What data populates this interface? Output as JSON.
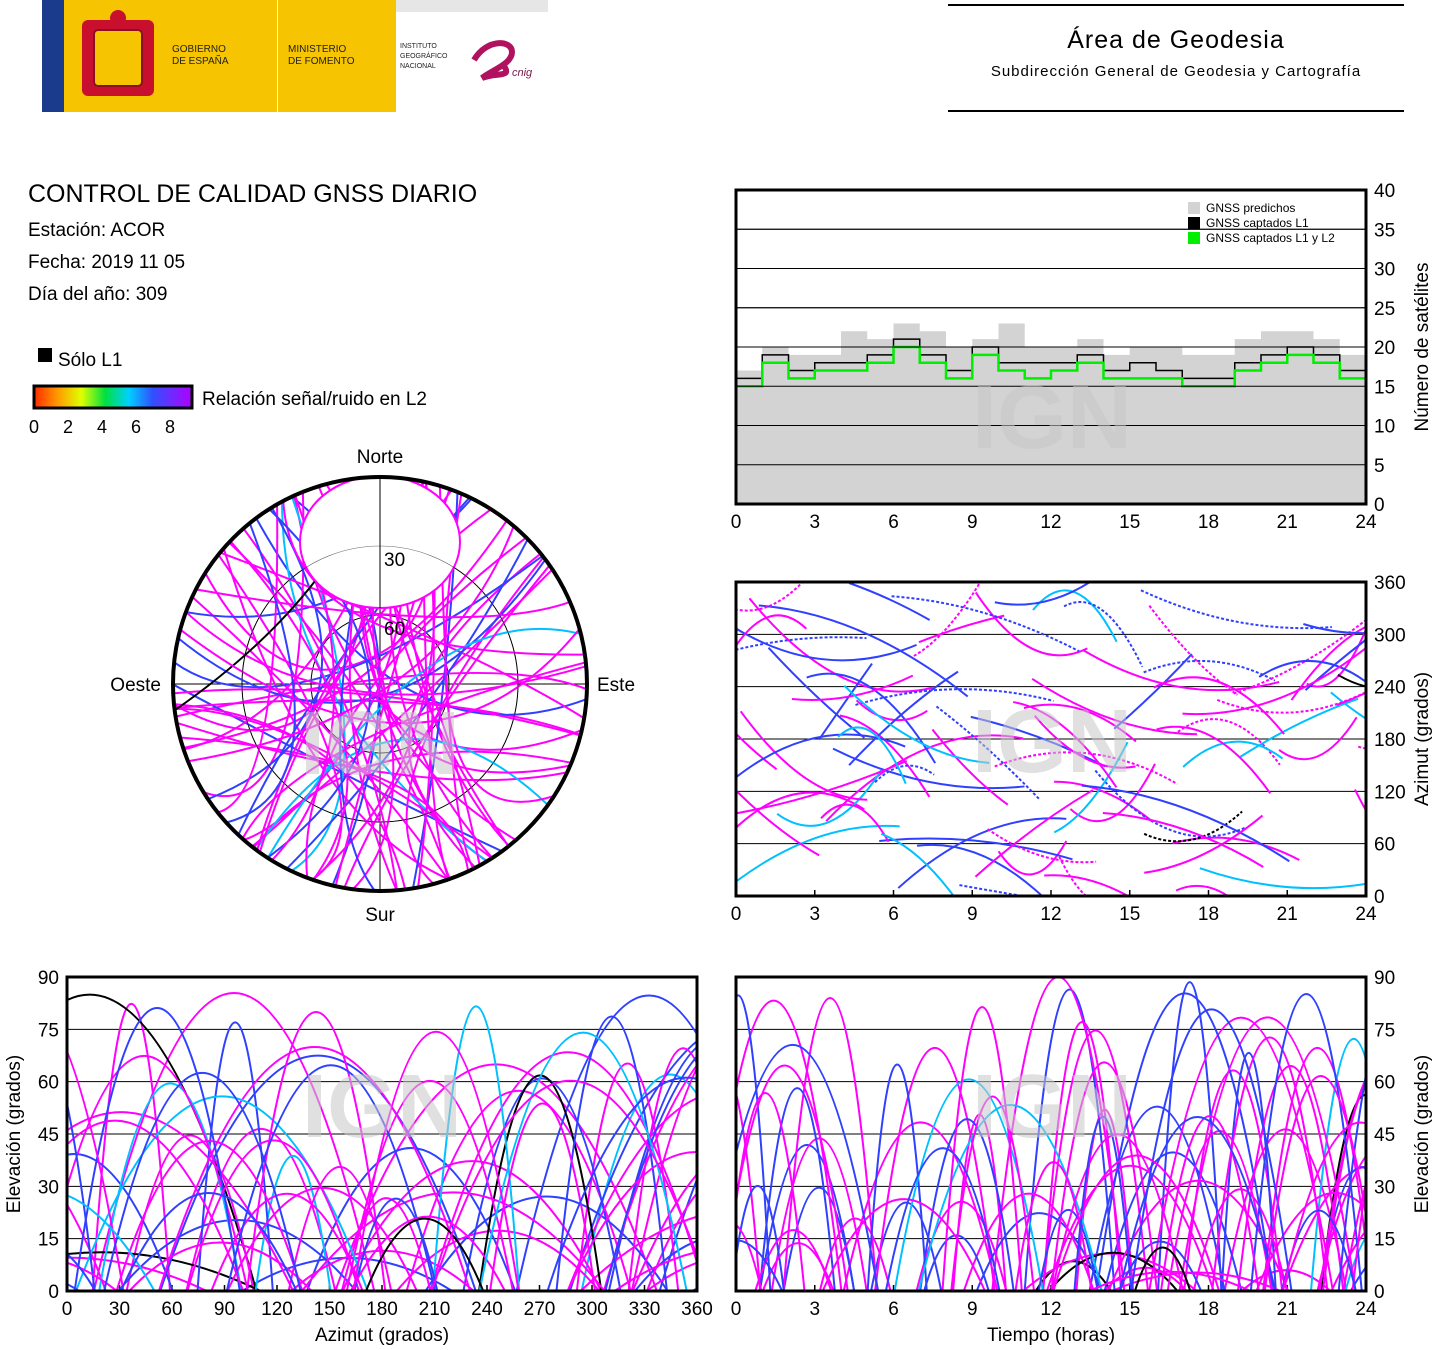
{
  "header": {
    "logos": {
      "gobierno": [
        "GOBIERNO",
        "DE ESPAÑA"
      ],
      "ministerio": [
        "MINISTERIO",
        "DE FOMENTO"
      ],
      "instituto": [
        "INSTITUTO",
        "GEOGRÁFICO",
        "NACIONAL"
      ],
      "cnig": "cnig"
    },
    "area_title": "Área de Geodesia",
    "area_subtitle": "Subdirección General de Geodesia y Cartografía"
  },
  "report": {
    "title": "CONTROL DE CALIDAD GNSS DIARIO",
    "station": "Estación: ACOR",
    "date": "Fecha: 2019 11 05",
    "doy": "Día del año: 309"
  },
  "legend": {
    "l1_only": "Sólo L1",
    "snr_label": "Relación señal/ruido en L2",
    "snr_ticks": [
      "0",
      "2",
      "4",
      "6",
      "8"
    ],
    "colors": {
      "l1_only": "#000000",
      "snr_high": "#ff00ff",
      "snr_mid": "#3040ff",
      "snr_low": "#00c0ff"
    }
  },
  "watermark": "IGN",
  "chart_data": [
    {
      "type": "area",
      "ylabel": "Número de satélites",
      "x_ticks": [
        "0",
        "3",
        "6",
        "9",
        "12",
        "15",
        "18",
        "21",
        "24"
      ],
      "y_ticks": [
        "0",
        "5",
        "10",
        "15",
        "20",
        "25",
        "30",
        "35",
        "40"
      ],
      "xlim": [
        0,
        24
      ],
      "ylim": [
        0,
        40
      ],
      "legend_position": "top-right",
      "series": [
        {
          "name": "GNSS predichos",
          "color": "#d3d3d3",
          "x": [
            0,
            1,
            2,
            3,
            4,
            5,
            6,
            7,
            8,
            9,
            10,
            11,
            12,
            13,
            14,
            15,
            16,
            17,
            18,
            19,
            20,
            21,
            22,
            23,
            24
          ],
          "values": [
            17,
            20,
            19,
            19,
            22,
            21,
            23,
            22,
            20,
            21,
            23,
            20,
            20,
            21,
            19,
            20,
            20,
            19,
            19,
            21,
            22,
            22,
            21,
            19,
            19
          ]
        },
        {
          "name": "GNSS captados L1",
          "color": "#000000",
          "x": [
            0,
            1,
            2,
            3,
            4,
            5,
            6,
            7,
            8,
            9,
            10,
            11,
            12,
            13,
            14,
            15,
            16,
            17,
            18,
            19,
            20,
            21,
            22,
            23,
            24
          ],
          "values": [
            16,
            19,
            17,
            18,
            18,
            19,
            21,
            19,
            17,
            20,
            18,
            18,
            18,
            19,
            17,
            18,
            17,
            16,
            16,
            18,
            19,
            20,
            19,
            17,
            17
          ]
        },
        {
          "name": "GNSS captados L1 y L2",
          "color": "#00ee00",
          "x": [
            0,
            1,
            2,
            3,
            4,
            5,
            6,
            7,
            8,
            9,
            10,
            11,
            12,
            13,
            14,
            15,
            16,
            17,
            18,
            19,
            20,
            21,
            22,
            23,
            24
          ],
          "values": [
            15,
            18,
            16,
            17,
            17,
            18,
            20,
            18,
            16,
            19,
            17,
            16,
            17,
            18,
            16,
            16,
            16,
            15,
            15,
            17,
            18,
            19,
            18,
            16,
            16
          ]
        }
      ]
    },
    {
      "type": "scatter",
      "ylabel": "Azimut (grados)",
      "x_ticks": [
        "0",
        "3",
        "6",
        "9",
        "12",
        "15",
        "18",
        "21",
        "24"
      ],
      "y_ticks": [
        "0",
        "60",
        "120",
        "180",
        "240",
        "300",
        "360"
      ],
      "xlim": [
        0,
        24
      ],
      "ylim": [
        0,
        360
      ]
    },
    {
      "type": "scatter",
      "polar": true,
      "directions": {
        "north": "Norte",
        "south": "Sur",
        "east": "Este",
        "west": "Oeste"
      },
      "rings": [
        "30",
        "60"
      ]
    },
    {
      "type": "scatter",
      "xlabel": "Azimut (grados)",
      "ylabel": "Elevación (grados)",
      "x_ticks": [
        "0",
        "30",
        "60",
        "90",
        "120",
        "150",
        "180",
        "210",
        "240",
        "270",
        "300",
        "330",
        "360"
      ],
      "y_ticks": [
        "0",
        "15",
        "30",
        "45",
        "60",
        "75",
        "90"
      ],
      "xlim": [
        0,
        360
      ],
      "ylim": [
        0,
        90
      ]
    },
    {
      "type": "scatter",
      "xlabel": "Tiempo (horas)",
      "ylabel": "Elevación (grados)",
      "x_ticks": [
        "0",
        "3",
        "6",
        "9",
        "12",
        "15",
        "18",
        "21",
        "24"
      ],
      "y_ticks": [
        "0",
        "15",
        "30",
        "45",
        "60",
        "75",
        "90"
      ],
      "xlim": [
        0,
        24
      ],
      "ylim": [
        0,
        90
      ]
    }
  ]
}
